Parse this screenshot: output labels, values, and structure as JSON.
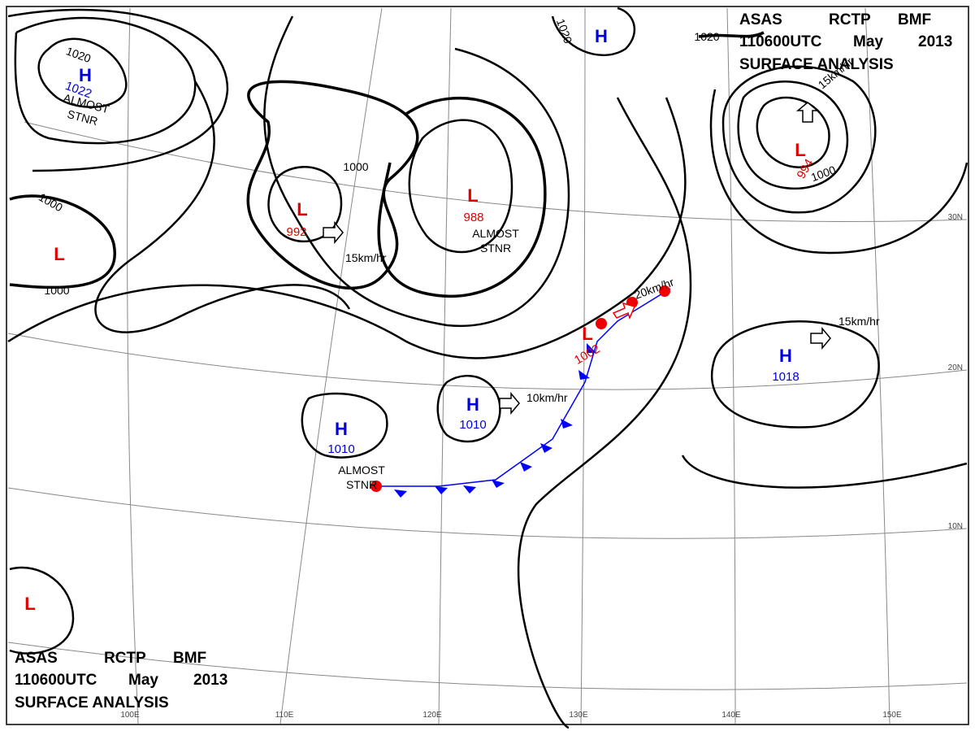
{
  "header": {
    "agency": "ASAS",
    "station": "RCTP",
    "office": "BMF",
    "time": "110600UTC",
    "month": "May",
    "year": "2013",
    "title": "SURFACE ANALYSIS"
  },
  "centers": [
    {
      "symbol": "H",
      "pressure": "1022"
    },
    {
      "symbol": "L",
      "pressure": "992"
    },
    {
      "symbol": "L",
      "pressure": "988"
    },
    {
      "symbol": "H",
      "pressure": "1010"
    },
    {
      "symbol": "H",
      "pressure": "1010"
    },
    {
      "symbol": "L",
      "pressure": "1002"
    },
    {
      "symbol": "H",
      "pressure": "1018"
    },
    {
      "symbol": "L",
      "pressure": "994"
    },
    {
      "symbol": "H"
    },
    {
      "symbol": "L"
    },
    {
      "symbol": "L"
    }
  ],
  "isobar_labels": [
    "1020",
    "1020",
    "1020",
    "1000",
    "1000",
    "1000",
    "1000"
  ],
  "motions": [
    "15km/hr",
    "15km/hr",
    "15km/hr",
    "20km/hr",
    "10km/hr"
  ],
  "stationary": [
    {
      "line1": "ALMOST",
      "line2": "STNR"
    },
    {
      "line1": "ALMOST",
      "line2": "STNR"
    },
    {
      "line1": "ALMOST",
      "line2": "STNR"
    }
  ],
  "longitudes": [
    "100E",
    "110E",
    "120E",
    "130E",
    "140E",
    "150E"
  ],
  "latitudes": [
    "30N",
    "20N",
    "10N"
  ]
}
